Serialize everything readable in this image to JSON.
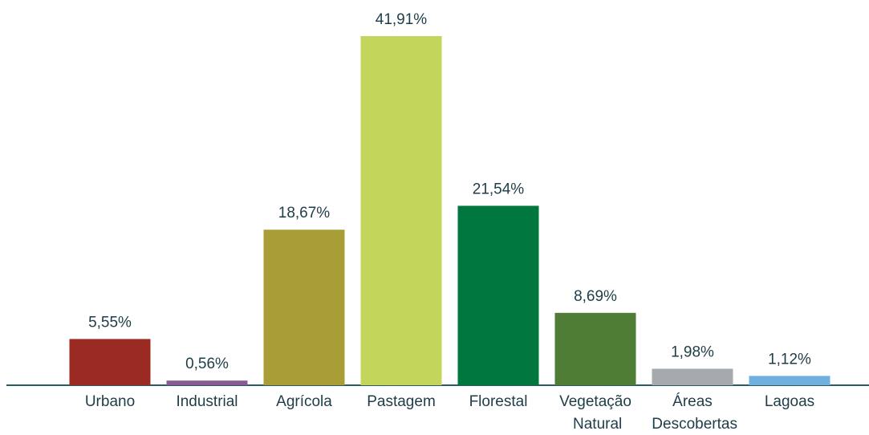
{
  "chart_data": {
    "type": "bar",
    "categories": [
      "Urbano",
      "Industrial",
      "Agrícola",
      "Pastagem",
      "Florestal",
      "Vegetação Natural",
      "Áreas Descobertas",
      "Lagoas"
    ],
    "values": [
      5.55,
      0.56,
      18.67,
      41.91,
      21.54,
      8.69,
      1.98,
      1.12
    ],
    "value_labels": [
      "5,55%",
      "0,56%",
      "18,67%",
      "41,91%",
      "21,54%",
      "8,69%",
      "1,98%",
      "1,12%"
    ],
    "colors": [
      "#9b2a22",
      "#8a5a96",
      "#a89d36",
      "#c4d55c",
      "#00773f",
      "#4f7d35",
      "#a6a9ae",
      "#6fb0df"
    ]
  }
}
